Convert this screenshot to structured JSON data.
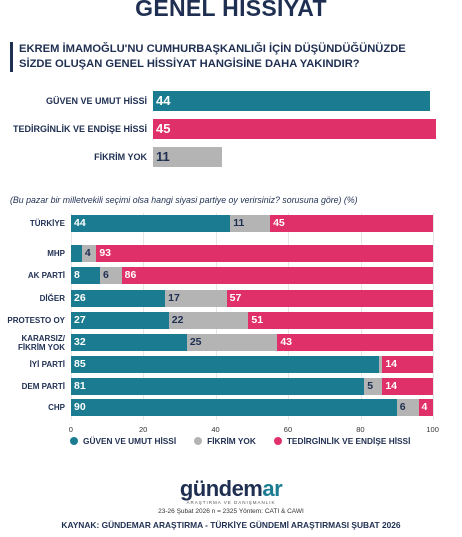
{
  "colors": {
    "trust": "#1a7b91",
    "none": "#b4b4b4",
    "anxiety": "#e0306a",
    "navy": "#1f2f52"
  },
  "page_title": "GENEL HİSSİYAT",
  "question": {
    "line1": "EKREM İMAMOĞLU'NU CUMHURBAŞKANLIĞI İÇİN DÜŞÜNDÜĞÜNÜZDE",
    "line2": "SİZDE OLUŞAN GENEL HİSSİYAT HANGİSİNE DAHA YAKINDIR?"
  },
  "subtitle": "(Bu pazar bir milletvekili seçimi olsa hangi siyasi partiye oy verirsiniz? sorusuna göre) (%)",
  "legend": {
    "trust": "GÜVEN VE UMUT HİSSİ",
    "none": "FİKRİM YOK",
    "anxiety": "TEDİRGİNLİK VE ENDİŞE HİSSİ"
  },
  "logo": {
    "main": "gündem",
    "accent": "ar",
    "sub": "ARAŞTIRMA VE DANIŞMANLIK"
  },
  "methodology": "23-26 Şubat 2026 n = 2325 Yöntem: CATI & CAWI",
  "source": "KAYNAK: GÜNDEMAR ARAŞTIRMA - TÜRKİYE GÜNDEMİ ARAŞTIRMASI ŞUBAT 2026",
  "chart_data": [
    {
      "type": "bar",
      "orientation": "horizontal",
      "categories": [
        "GÜVEN VE UMUT HİSSİ",
        "TEDİRGİNLİK VE ENDİŞE HİSSİ",
        "FİKRİM YOK"
      ],
      "values": [
        44,
        45,
        11
      ],
      "value_labels": [
        "44",
        "45",
        "11"
      ],
      "colors": [
        "#1a7b91",
        "#e0306a",
        "#b4b4b4"
      ]
    },
    {
      "type": "bar",
      "orientation": "horizontal",
      "stacked": true,
      "categories": [
        "TÜRKİYE",
        "MHP",
        "AK PARTİ",
        "DİĞER",
        "PROTESTO OY",
        "KARARSIZ/\nFİKRİM YOK",
        "İYİ PARTİ",
        "DEM PARTİ",
        "CHP"
      ],
      "series": [
        {
          "name": "GÜVEN VE UMUT HİSSİ",
          "values": [
            44,
            3,
            8,
            26,
            27,
            32,
            85,
            81,
            90
          ],
          "labels": [
            "44",
            "3",
            "8",
            "26",
            "27",
            "32",
            "85",
            "81",
            "90"
          ]
        },
        {
          "name": "FİKRİM YOK",
          "values": [
            11,
            4,
            6,
            17,
            22,
            25,
            1,
            5,
            6
          ],
          "labels": [
            "11",
            "4",
            "6",
            "17",
            "22",
            "25",
            "1",
            "5",
            "6"
          ]
        },
        {
          "name": "TEDİRGİNLİK VE ENDİŞE HİSSİ",
          "values": [
            45,
            93,
            86,
            57,
            51,
            43,
            14,
            14,
            4
          ],
          "labels": [
            "45",
            "93",
            "86",
            "57",
            "51",
            "43",
            "14",
            "14",
            "4"
          ]
        }
      ],
      "xlim": [
        0,
        100
      ],
      "xticks": [
        "0",
        "20",
        "40",
        "60",
        "80",
        "100"
      ],
      "legend_position": "bottom"
    }
  ]
}
